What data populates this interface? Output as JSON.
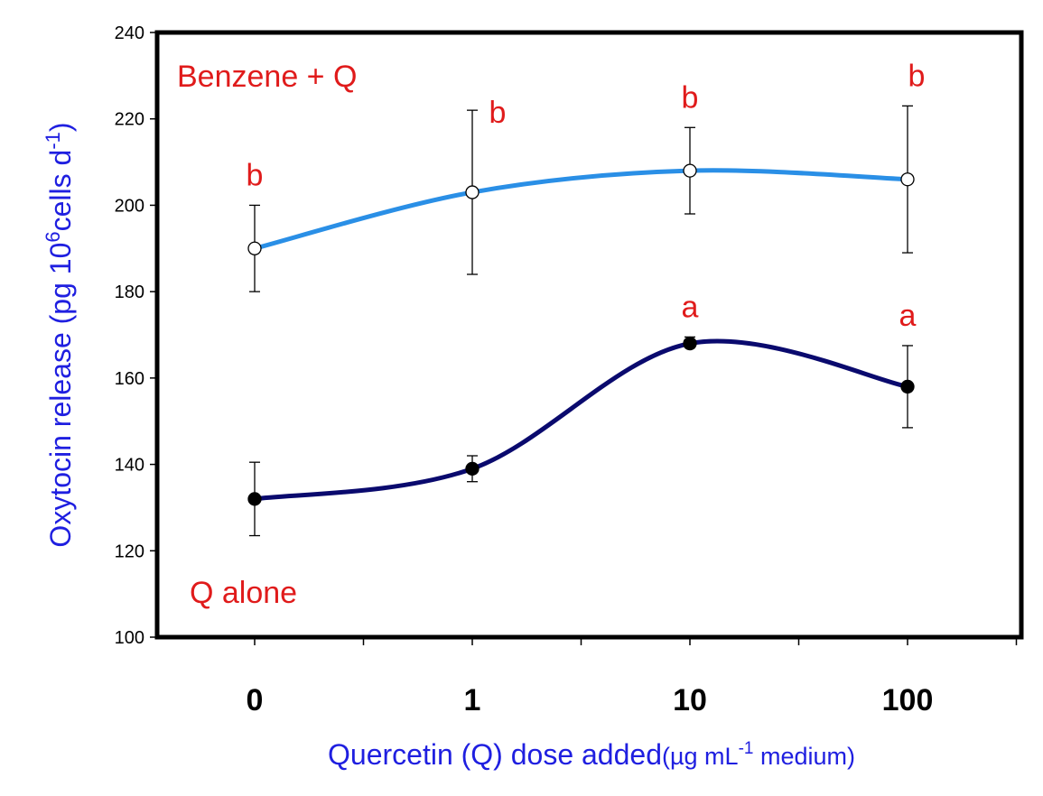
{
  "chart_data": {
    "type": "line",
    "categories": [
      "0",
      "1",
      "10",
      "100"
    ],
    "ylim": [
      100,
      240
    ],
    "yticks": [
      100,
      120,
      140,
      160,
      180,
      200,
      220,
      240
    ],
    "ylabel_main": "Oxytocin release (pg 10",
    "ylabel_sup1": "6",
    "ylabel_mid": "cells d",
    "ylabel_sup2": "-1",
    "ylabel_end": ")",
    "xlabel_main": "Quercetin (Q) dose added",
    "xlabel_unit_a": "(µg mL",
    "xlabel_unit_sup": "-1",
    "xlabel_unit_b": " medium)",
    "series": [
      {
        "name": "Benzene + Q",
        "color": "#2a8fe6",
        "marker": "open",
        "values": [
          190,
          203,
          208,
          206
        ],
        "err_low": [
          180,
          184,
          198,
          189
        ],
        "err_high": [
          200,
          222,
          218,
          223
        ],
        "sig": [
          "b",
          "b",
          "b",
          "b"
        ]
      },
      {
        "name": "Q alone",
        "color": "#0a0a6e",
        "marker": "filled",
        "values": [
          132,
          139,
          168,
          158
        ],
        "err_low": [
          123.5,
          136,
          167,
          148.5
        ],
        "err_high": [
          140.5,
          142,
          169.5,
          167.5
        ],
        "sig": [
          "",
          "",
          "a",
          "a"
        ]
      }
    ],
    "colors": {
      "axis_label": "#1f1fe0",
      "annotation": "#e01b1b",
      "frame": "#000000"
    }
  }
}
